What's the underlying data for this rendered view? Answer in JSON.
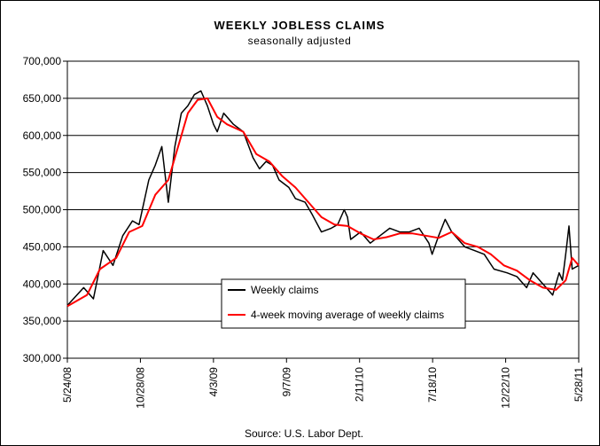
{
  "chart_data": {
    "type": "line",
    "title": "WEEKLY JOBLESS CLAIMS",
    "subtitle": "seasonally adjusted",
    "source": "Source: U.S. Labor Dept.",
    "y_ticks": [
      "700,000",
      "650,000",
      "600,000",
      "550,000",
      "500,000",
      "450,000",
      "400,000",
      "350,000",
      "300,000"
    ],
    "ylim": [
      300000,
      700000
    ],
    "x_ticks": [
      "5/24/08",
      "10/28/08",
      "4/3/09",
      "9/7/09",
      "2/11/10",
      "7/18/10",
      "12/22/10",
      "5/28/11"
    ],
    "x_range": [
      "5/24/08",
      "5/28/11"
    ],
    "grid": true,
    "legend_position": "bottom-center",
    "series": [
      {
        "name": "Weekly claims",
        "color": "#000000",
        "x": [
          "2008-05-24",
          "2008-06-28",
          "2008-07-19",
          "2008-08-09",
          "2008-08-30",
          "2008-09-20",
          "2008-10-11",
          "2008-10-25",
          "2008-11-15",
          "2008-11-29",
          "2008-12-13",
          "2008-12-27",
          "2009-01-10",
          "2009-01-24",
          "2009-02-07",
          "2009-02-21",
          "2009-03-07",
          "2009-03-21",
          "2009-04-03",
          "2009-04-11",
          "2009-04-25",
          "2009-05-16",
          "2009-06-06",
          "2009-06-27",
          "2009-07-11",
          "2009-07-25",
          "2009-08-08",
          "2009-08-22",
          "2009-09-12",
          "2009-09-26",
          "2009-10-17",
          "2009-10-31",
          "2009-11-21",
          "2009-12-12",
          "2009-12-26",
          "2010-01-09",
          "2010-01-16",
          "2010-01-23",
          "2010-02-13",
          "2010-03-06",
          "2010-03-27",
          "2010-04-17",
          "2010-05-08",
          "2010-05-29",
          "2010-06-19",
          "2010-07-10",
          "2010-07-17",
          "2010-07-31",
          "2010-08-14",
          "2010-08-28",
          "2010-09-25",
          "2010-10-16",
          "2010-11-06",
          "2010-11-27",
          "2010-12-25",
          "2011-01-15",
          "2011-02-05",
          "2011-02-19",
          "2011-03-12",
          "2011-04-02",
          "2011-04-16",
          "2011-04-23",
          "2011-04-30",
          "2011-05-07",
          "2011-05-14",
          "2011-05-28"
        ],
        "values": [
          371000,
          395000,
          380000,
          445000,
          425000,
          465000,
          485000,
          480000,
          540000,
          560000,
          585000,
          510000,
          585000,
          630000,
          640000,
          655000,
          660000,
          640000,
          615000,
          605000,
          630000,
          615000,
          605000,
          570000,
          555000,
          565000,
          560000,
          540000,
          530000,
          515000,
          510000,
          495000,
          470000,
          475000,
          480000,
          500000,
          490000,
          460000,
          470000,
          455000,
          465000,
          475000,
          470000,
          470000,
          475000,
          455000,
          440000,
          465000,
          487000,
          470000,
          450000,
          445000,
          440000,
          420000,
          415000,
          410000,
          395000,
          415000,
          400000,
          385000,
          415000,
          405000,
          440000,
          478000,
          420000,
          425000
        ]
      },
      {
        "name": "4-week moving average of weekly claims",
        "color": "#ff0000",
        "x": [
          "2008-05-24",
          "2008-07-05",
          "2008-08-02",
          "2008-09-06",
          "2008-10-04",
          "2008-11-01",
          "2008-11-29",
          "2008-12-27",
          "2009-01-17",
          "2009-02-07",
          "2009-02-28",
          "2009-03-21",
          "2009-04-11",
          "2009-05-02",
          "2009-06-06",
          "2009-07-04",
          "2009-08-01",
          "2009-08-29",
          "2009-09-26",
          "2009-10-24",
          "2009-11-21",
          "2009-12-19",
          "2010-01-16",
          "2010-02-13",
          "2010-03-13",
          "2010-04-10",
          "2010-05-08",
          "2010-06-05",
          "2010-07-03",
          "2010-07-31",
          "2010-08-28",
          "2010-09-25",
          "2010-10-23",
          "2010-11-20",
          "2010-12-18",
          "2011-01-15",
          "2011-02-12",
          "2011-03-12",
          "2011-04-09",
          "2011-04-30",
          "2011-05-14",
          "2011-05-28"
        ],
        "values": [
          370000,
          385000,
          420000,
          435000,
          470000,
          478000,
          520000,
          540000,
          585000,
          630000,
          648000,
          650000,
          625000,
          615000,
          605000,
          575000,
          565000,
          545000,
          530000,
          510000,
          490000,
          480000,
          478000,
          468000,
          460000,
          463000,
          468000,
          468000,
          465000,
          462000,
          470000,
          455000,
          450000,
          440000,
          425000,
          418000,
          405000,
          395000,
          392000,
          405000,
          435000,
          425000
        ]
      }
    ]
  }
}
